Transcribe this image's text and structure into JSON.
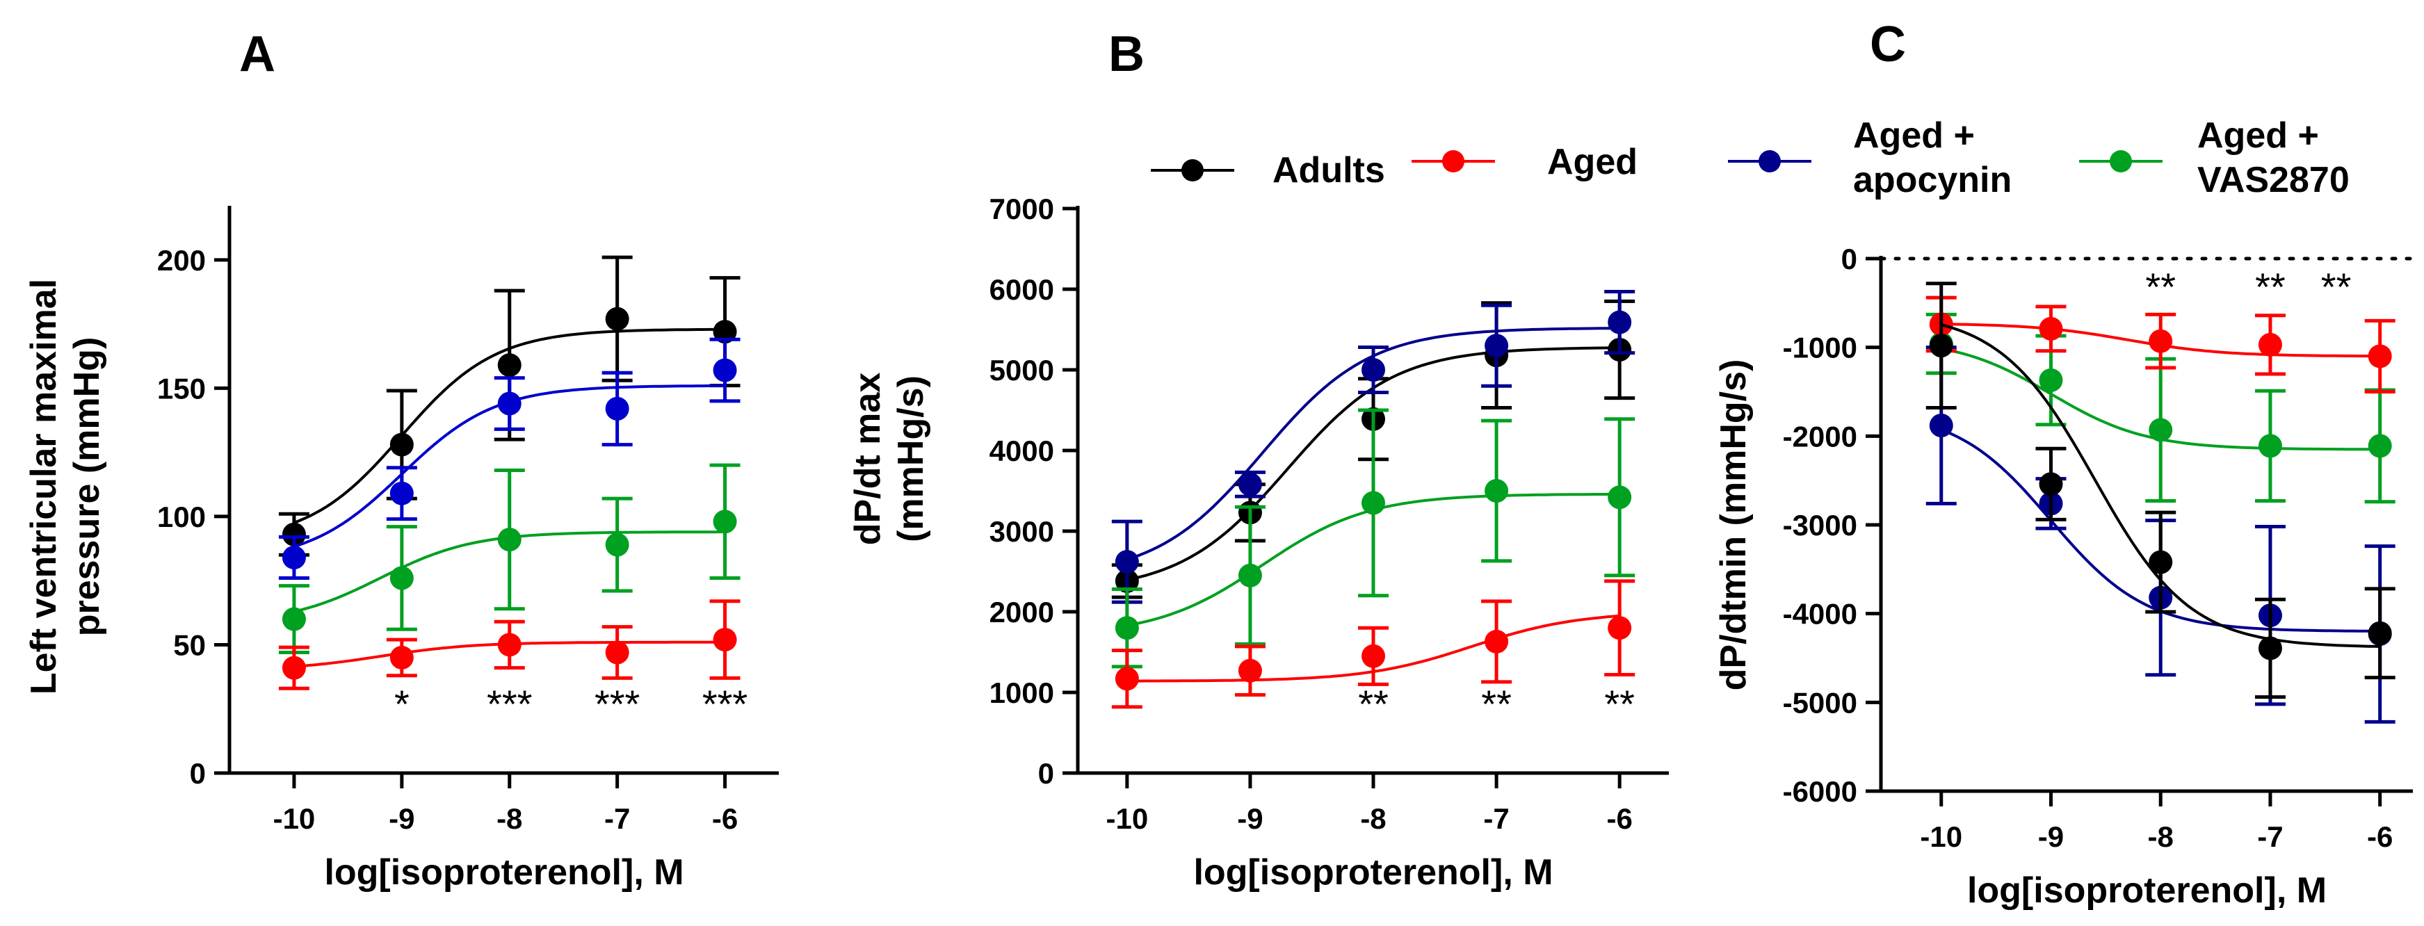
{
  "legend": [
    {
      "name": "Adults",
      "color": "#000000"
    },
    {
      "name": "Aged",
      "color": "#ff0000"
    },
    {
      "name": "Aged + apocynin",
      "lines": [
        "Aged +",
        "apocynin"
      ],
      "color": "#00008b"
    },
    {
      "name": "Aged + VAS2870",
      "lines": [
        "Aged +",
        "VAS2870"
      ],
      "color": "#00a020"
    }
  ],
  "chart_data": [
    {
      "type": "scatter",
      "panel": "A",
      "xlabel": "log[isoproterenol], M",
      "ylabel_lines": [
        "Left ventricular maximal",
        "pressure (mmHg)"
      ],
      "x": [
        -10,
        -9,
        -8,
        -7,
        -6
      ],
      "x_ticks": [
        "-10",
        "-9",
        "-8",
        "-7",
        "-6"
      ],
      "xlim": [
        -10.6,
        -5.5
      ],
      "ylim": [
        0,
        220
      ],
      "y_ticks": [
        0,
        50,
        100,
        150,
        200
      ],
      "y_tick_labels": [
        "0",
        "50",
        "100",
        "150",
        "200"
      ],
      "zero_line": false,
      "series": [
        {
          "name": "Adults",
          "color": "#000000",
          "values": [
            93,
            128,
            159,
            177,
            172
          ],
          "err": [
            8,
            21,
            29,
            24,
            21
          ],
          "fit": {
            "bottom": 90,
            "top": 173,
            "logEC50": -9.0
          }
        },
        {
          "name": "Aged + apocynin",
          "color": "#0000cd",
          "values": [
            84,
            109,
            144,
            142,
            157
          ],
          "err": [
            8,
            10,
            10,
            14,
            12
          ],
          "fit": {
            "bottom": 82,
            "top": 151,
            "logEC50": -9.0
          }
        },
        {
          "name": "Aged + VAS2870",
          "color": "#00a020",
          "values": [
            60,
            76,
            91,
            89,
            98
          ],
          "err": [
            13,
            20,
            27,
            18,
            22
          ],
          "fit": {
            "bottom": 58,
            "top": 94,
            "logEC50": -9.2
          }
        },
        {
          "name": "Aged",
          "color": "#ff0000",
          "values": [
            41,
            45,
            50,
            47,
            52
          ],
          "err": [
            8,
            7,
            9,
            10,
            15
          ],
          "fit": {
            "bottom": 40,
            "top": 51,
            "logEC50": -9.2
          }
        }
      ],
      "annotations": [
        {
          "x": -9,
          "text": "*"
        },
        {
          "x": -8,
          "text": "***"
        },
        {
          "x": -7,
          "text": "***"
        },
        {
          "x": -6,
          "text": "***"
        }
      ]
    },
    {
      "type": "scatter",
      "panel": "B",
      "xlabel": "log[isoproterenol], M",
      "ylabel_lines": [
        "dP/dt max",
        "(mmHg/s)"
      ],
      "x": [
        -10,
        -9,
        -8,
        -7,
        -6
      ],
      "x_ticks": [
        "-10",
        "-9",
        "-8",
        "-7",
        "-6"
      ],
      "xlim": [
        -10.4,
        -5.6
      ],
      "ylim": [
        0,
        7000
      ],
      "y_ticks": [
        0,
        1000,
        2000,
        3000,
        4000,
        5000,
        6000,
        7000
      ],
      "y_tick_labels": [
        "0",
        "1000",
        "2000",
        "3000",
        "4000",
        "5000",
        "6000",
        "7000"
      ],
      "zero_line": false,
      "series": [
        {
          "name": "Adults",
          "color": "#000000",
          "values": [
            2380,
            3230,
            4390,
            5180,
            5250
          ],
          "err": [
            200,
            350,
            500,
            650,
            600
          ],
          "fit": {
            "bottom": 2250,
            "top": 5280,
            "logEC50": -8.7
          }
        },
        {
          "name": "Aged + apocynin",
          "color": "#00008b",
          "values": [
            2620,
            3580,
            5000,
            5300,
            5590
          ],
          "err": [
            500,
            150,
            280,
            500,
            380
          ],
          "fit": {
            "bottom": 2420,
            "top": 5520,
            "logEC50": -8.9
          }
        },
        {
          "name": "Aged + VAS2870",
          "color": "#00a020",
          "values": [
            1800,
            2450,
            3350,
            3500,
            3420
          ],
          "err": [
            480,
            850,
            1150,
            870,
            970
          ],
          "fit": {
            "bottom": 1700,
            "top": 3460,
            "logEC50": -8.9
          }
        },
        {
          "name": "Aged",
          "color": "#ff0000",
          "values": [
            1170,
            1270,
            1450,
            1630,
            1800
          ],
          "err": [
            350,
            300,
            350,
            500,
            580
          ],
          "fit": {
            "bottom": 1140,
            "top": 2000,
            "logEC50": -7.2
          }
        }
      ],
      "annotations": [
        {
          "x": -8,
          "text": "**"
        },
        {
          "x": -7,
          "text": "**"
        },
        {
          "x": -6,
          "text": "**"
        }
      ]
    },
    {
      "type": "scatter",
      "panel": "C",
      "xlabel": "log[isoproterenol], M",
      "ylabel_lines": [
        "dP/dtmin (mmHg/s)"
      ],
      "x": [
        -10,
        -9,
        -8,
        -7,
        -6
      ],
      "x_ticks": [
        "-10",
        "-9",
        "-8",
        "-7",
        "-6"
      ],
      "xlim": [
        -10.55,
        -5.7
      ],
      "ylim": [
        -6000,
        0
      ],
      "y_ticks": [
        -6000,
        -5000,
        -4000,
        -3000,
        -2000,
        -1000,
        0
      ],
      "y_tick_labels": [
        "-6000",
        "-5000",
        "-4000",
        "-3000",
        "-2000",
        "-1000",
        "0"
      ],
      "zero_line": true,
      "series": [
        {
          "name": "Aged + VAS2870",
          "color": "#00a020",
          "values": [
            -960,
            -1370,
            -1930,
            -2110,
            -2110
          ],
          "err": [
            330,
            500,
            800,
            620,
            630
          ],
          "fit": {
            "bottom": -900,
            "top": -2150,
            "logEC50": -9.0
          }
        },
        {
          "name": "Aged",
          "color": "#ff0000",
          "values": [
            -740,
            -790,
            -930,
            -970,
            -1100
          ],
          "err": [
            300,
            250,
            300,
            330,
            400
          ],
          "fit": {
            "bottom": -730,
            "top": -1100,
            "logEC50": -8.3
          }
        },
        {
          "name": "Aged + apocynin",
          "color": "#00008b",
          "values": [
            -1880,
            -2760,
            -3820,
            -4020,
            -4230
          ],
          "err": [
            880,
            280,
            870,
            1000,
            990
          ],
          "fit": {
            "bottom": -1700,
            "top": -4200,
            "logEC50": -9.0
          }
        },
        {
          "name": "Adults",
          "color": "#000000",
          "values": [
            -980,
            -2540,
            -3420,
            -4390,
            -4220
          ],
          "err": [
            700,
            400,
            560,
            550,
            500
          ],
          "fit": {
            "bottom": -600,
            "top": -4380,
            "logEC50": -8.6
          }
        }
      ],
      "annotations": [
        {
          "x": -8,
          "text": "**"
        },
        {
          "x": -7,
          "text": "**"
        },
        {
          "x": -6.4,
          "text": "**"
        }
      ]
    }
  ]
}
